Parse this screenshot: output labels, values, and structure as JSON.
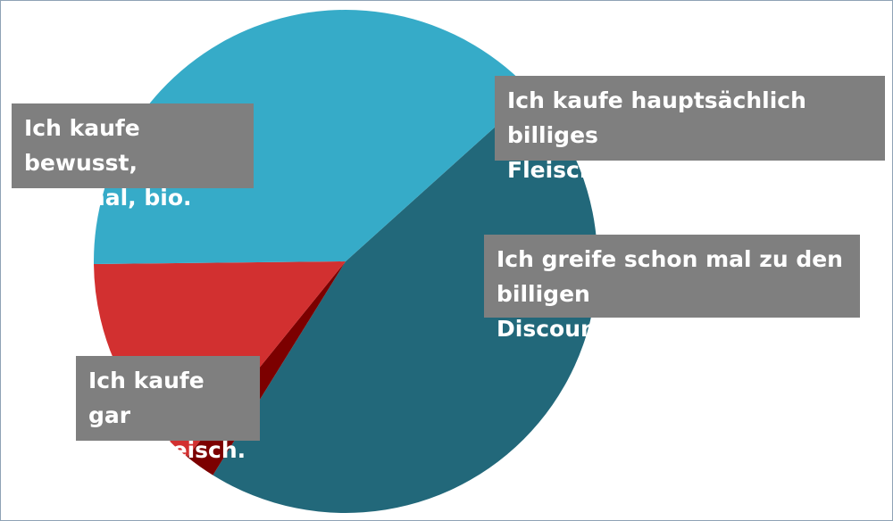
{
  "chart_data": {
    "type": "pie",
    "title": "",
    "slices": [
      {
        "label": "Ich kaufe bewusst, regional, bio.",
        "value": 45.5,
        "color": "#22687a"
      },
      {
        "label": "Ich kaufe hauptsächlich billiges Fleisch aus dem Angebot.",
        "value": 2.0,
        "color": "#7c0000"
      },
      {
        "label": "Ich greife schon mal zu den billigen Discounterangeboten.",
        "value": 14.0,
        "color": "#d23030"
      },
      {
        "label": "Ich kaufe gar kein Fleisch.",
        "value": 38.5,
        "color": "#36abc8"
      }
    ],
    "start_angle_deg": 48,
    "direction": "clockwise",
    "legend": "none"
  },
  "labels": {
    "slice_0": "Ich kaufe bewusst,\nregional, bio.",
    "slice_1": "Ich kaufe hauptsächlich billiges\nFleisch aus dem Angebot.",
    "slice_2": "Ich greife schon mal zu den\nbilligen Discounterangeboten.",
    "slice_3": "Ich kaufe gar\nkein Fleisch."
  }
}
